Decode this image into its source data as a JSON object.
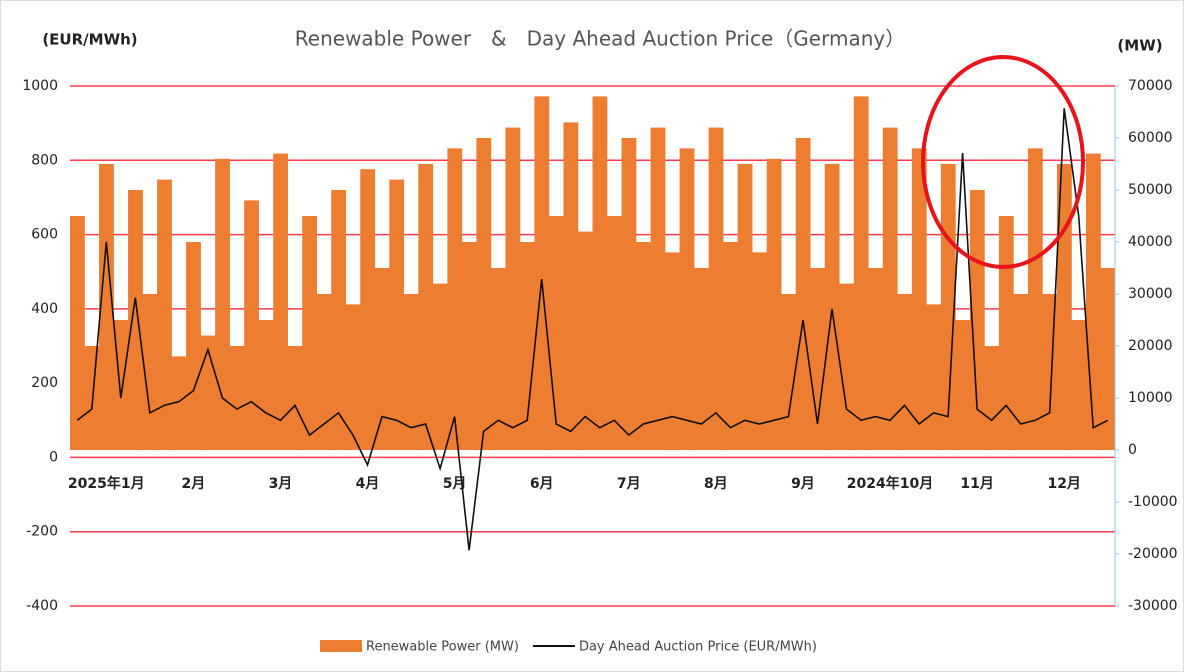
{
  "chart_data": {
    "type": "bar_line",
    "title": "Renewable Power　&　Day Ahead Auction Price（Germany）",
    "y_label": "(EUR/MWh)",
    "y2_label": "(MW)",
    "categories": [
      null,
      null,
      "2025年1月",
      null,
      null,
      null,
      null,
      null,
      "2月",
      null,
      null,
      null,
      null,
      null,
      "3月",
      null,
      null,
      null,
      null,
      null,
      "4月",
      null,
      null,
      null,
      null,
      null,
      "5月",
      null,
      null,
      null,
      null,
      null,
      "6月",
      null,
      null,
      null,
      null,
      null,
      "7月",
      null,
      null,
      null,
      null,
      null,
      "8月",
      null,
      null,
      null,
      null,
      null,
      "9月",
      null,
      null,
      null,
      null,
      null,
      "2024年10月",
      null,
      null,
      null,
      null,
      null,
      "11月",
      null,
      null,
      null,
      null,
      null,
      "12月",
      null,
      null,
      null
    ],
    "series": [
      {
        "name": "Renewable Power (MW)",
        "color": "#ed7d31",
        "axis": "y2",
        "kind": "bar",
        "values": [
          45000,
          20000,
          55000,
          25000,
          50000,
          30000,
          52000,
          18000,
          40000,
          22000,
          56000,
          20000,
          48000,
          25000,
          57000,
          20000,
          45000,
          30000,
          50000,
          28000,
          54000,
          35000,
          52000,
          30000,
          55000,
          32000,
          58000,
          40000,
          60000,
          35000,
          62000,
          40000,
          68000,
          45000,
          63000,
          42000,
          68000,
          45000,
          60000,
          40000,
          62000,
          38000,
          58000,
          35000,
          62000,
          40000,
          55000,
          38000,
          56000,
          30000,
          60000,
          35000,
          55000,
          32000,
          68000,
          35000,
          62000,
          30000,
          58000,
          28000,
          55000,
          25000,
          50000,
          20000,
          45000,
          30000,
          58000,
          30000,
          55000,
          25000,
          57000,
          35000
        ]
      },
      {
        "name": "Day Ahead Auction Price (EUR/MWh)",
        "color": "#111111",
        "axis": "y",
        "kind": "line",
        "values": [
          100,
          130,
          580,
          160,
          430,
          120,
          140,
          150,
          180,
          290,
          160,
          130,
          150,
          120,
          100,
          140,
          60,
          90,
          120,
          60,
          -20,
          110,
          100,
          80,
          90,
          -30,
          110,
          -250,
          70,
          100,
          80,
          100,
          480,
          90,
          70,
          110,
          80,
          100,
          60,
          90,
          100,
          110,
          100,
          90,
          120,
          80,
          100,
          90,
          100,
          110,
          370,
          90,
          400,
          130,
          100,
          110,
          100,
          140,
          90,
          120,
          110,
          820,
          130,
          100,
          140,
          90,
          100,
          120,
          940,
          650,
          80,
          100
        ]
      }
    ],
    "ylim": [
      -400,
      1000
    ],
    "yticks": [
      -400,
      -200,
      0,
      200,
      400,
      600,
      800,
      1000
    ],
    "y2lim": [
      -30000,
      70000
    ],
    "y2ticks": [
      -30000,
      -20000,
      -10000,
      0,
      10000,
      20000,
      30000,
      40000,
      50000,
      60000,
      70000
    ],
    "grid": true,
    "grid_color": "#ff3b4e",
    "legend": "bottom"
  }
}
